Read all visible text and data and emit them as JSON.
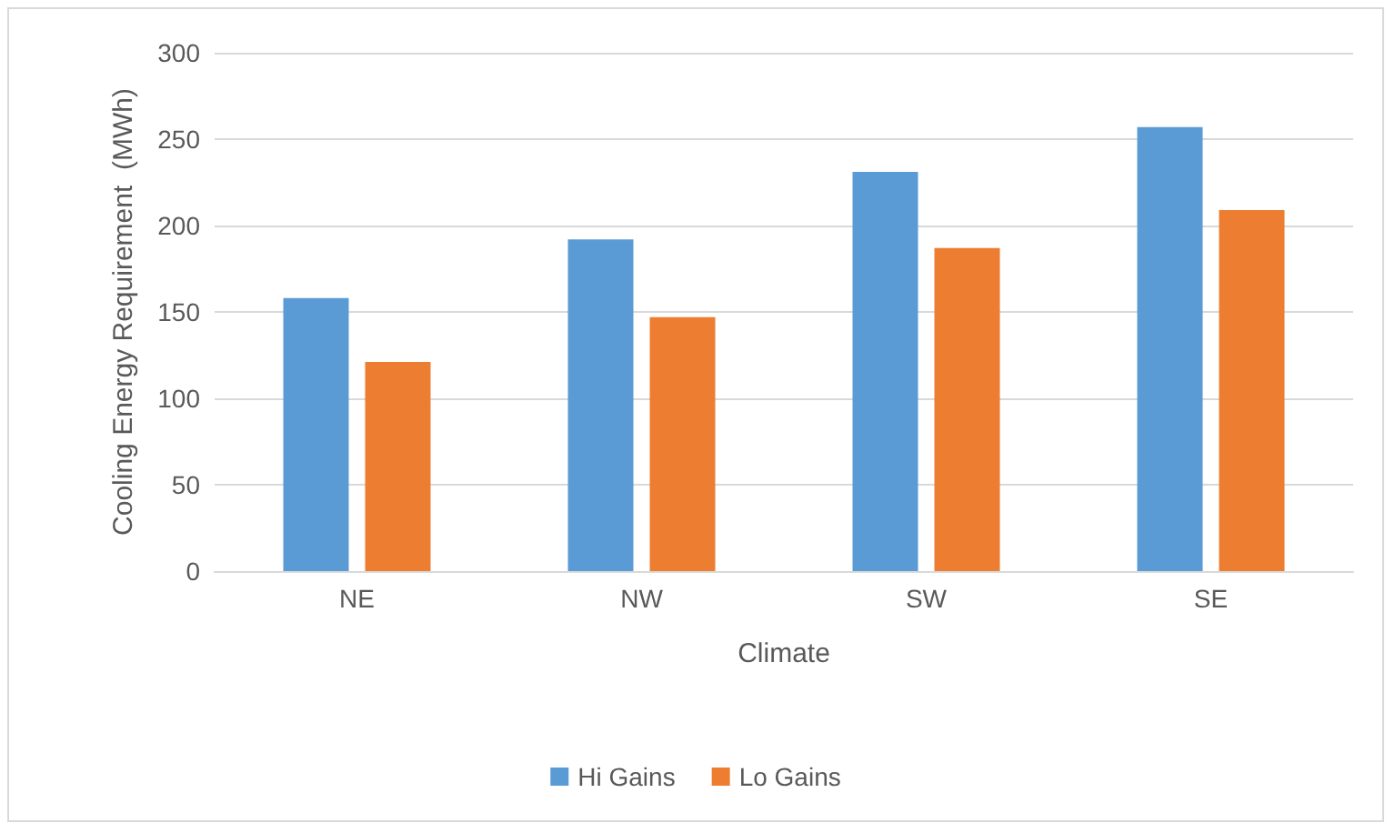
{
  "chart_data": {
    "type": "bar",
    "xlabel": "Climate",
    "ylabel": "Cooling Energy Requirement  (MWh)",
    "categories": [
      "NE",
      "NW",
      "SW",
      "SE"
    ],
    "series": [
      {
        "name": "Hi Gains",
        "color": "#5b9bd5",
        "values": [
          158,
          192,
          231,
          257
        ]
      },
      {
        "name": "Lo Gains",
        "color": "#ed7d31",
        "values": [
          121,
          147,
          187,
          209
        ]
      }
    ],
    "ylim": [
      0,
      300
    ],
    "yticks": [
      0,
      50,
      100,
      150,
      200,
      250,
      300
    ],
    "grid": "y",
    "legend": "bottom"
  }
}
